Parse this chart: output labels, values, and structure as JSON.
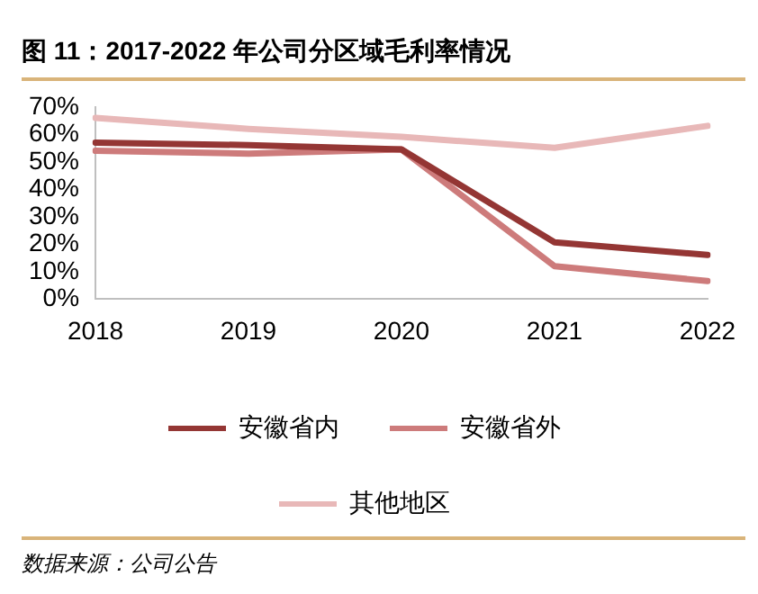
{
  "chart_data": {
    "type": "line",
    "title": "图 11：2017-2022 年公司分区域毛利率情况",
    "categories": [
      "2018",
      "2019",
      "2020",
      "2021",
      "2022"
    ],
    "series": [
      {
        "name": "安徽省内",
        "color": "#943634",
        "values": [
          57.0,
          56.1,
          54.5,
          20.7,
          16.1
        ]
      },
      {
        "name": "安徽省外",
        "color": "#cd7b7b",
        "values": [
          54.0,
          53.0,
          54.5,
          12.0,
          6.6
        ]
      },
      {
        "name": "其他地区",
        "color": "#e8b8b8",
        "values": [
          66.0,
          62.0,
          59.1,
          55.1,
          63.1
        ]
      }
    ],
    "ylim": [
      0,
      70
    ],
    "yticks": [
      {
        "value": 0,
        "label": "0%"
      },
      {
        "value": 10,
        "label": "10%"
      },
      {
        "value": 20,
        "label": "20%"
      },
      {
        "value": 30,
        "label": "30%"
      },
      {
        "value": 40,
        "label": "40%"
      },
      {
        "value": 50,
        "label": "50%"
      },
      {
        "value": 60,
        "label": "60%"
      },
      {
        "value": 70,
        "label": "70%"
      }
    ],
    "grid": false,
    "legend": "bottom",
    "marker": "none",
    "line_style": "solid",
    "annotations": [
      "数据来源：公司公告"
    ]
  }
}
